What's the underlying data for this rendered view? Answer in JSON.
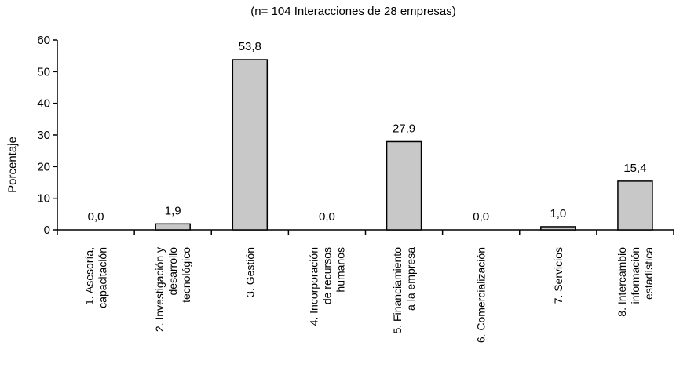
{
  "chart_data": {
    "type": "bar",
    "title": "",
    "subtitle": "(n= 104 Interacciones de 28 empresas)",
    "xlabel": "",
    "ylabel": "Porcentaje",
    "ylim": [
      0,
      60
    ],
    "yticks": [
      0,
      10,
      20,
      30,
      40,
      50,
      60
    ],
    "categories": [
      [
        "1. Asesoría,",
        "capacitación"
      ],
      [
        "2. Investigación y",
        "desarrollo",
        "tecnológico"
      ],
      [
        "3. Gestión"
      ],
      [
        "4. Incorporación",
        "de recursos",
        "humanos"
      ],
      [
        "5. Financiamiento",
        "a la empresa"
      ],
      [
        "6. Comercialización"
      ],
      [
        "7. Servicios"
      ],
      [
        "8. Intercambio",
        "información",
        "estadística"
      ]
    ],
    "values": [
      0.0,
      1.9,
      53.8,
      0.0,
      27.9,
      0.0,
      1.0,
      15.4
    ],
    "data_labels": [
      "0,0",
      "1,9",
      "53,8",
      "0,0",
      "27,9",
      "0,0",
      "1,0",
      "15,4"
    ],
    "bar_color": "#c8c8c8",
    "grid": false,
    "legend": "none"
  }
}
